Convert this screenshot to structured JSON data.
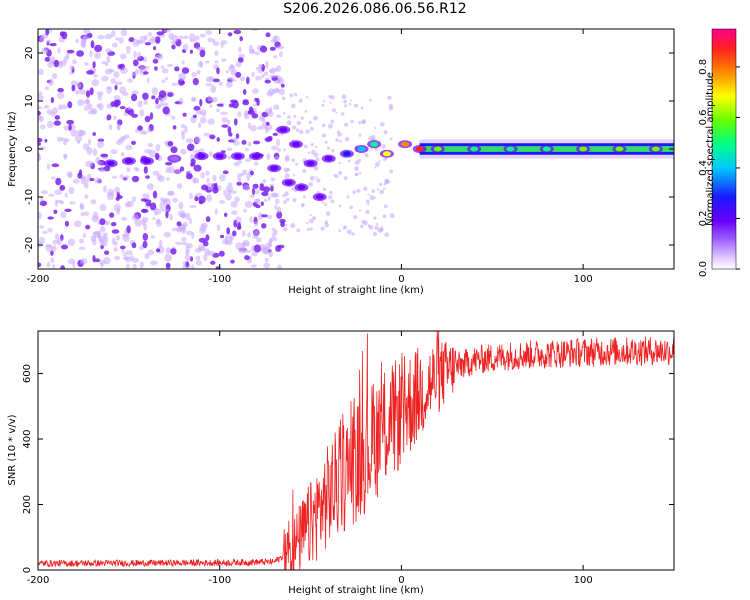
{
  "title": "S206.2026.086.06.56.R12",
  "chart_data": [
    {
      "type": "heatmap",
      "name": "spectrogram",
      "xlabel": "Height of straight line (km)",
      "ylabel": "Frequency (Hz)",
      "xlim": [
        -200,
        150
      ],
      "ylim": [
        -25,
        25
      ],
      "xticks": [
        -200,
        -100,
        0,
        100
      ],
      "yticks": [
        -20,
        -10,
        0,
        10,
        20
      ],
      "colorbar": {
        "label": "Normalized spectral amplitude",
        "range": [
          0,
          0.95
        ],
        "ticks": [
          0.0,
          0.2,
          0.4,
          0.6,
          0.8
        ],
        "colors": [
          "#ffffff",
          "#e6d2ff",
          "#a064ff",
          "#6a00ff",
          "#1a1aff",
          "#00c8ff",
          "#00ff88",
          "#66ff00",
          "#ffff00",
          "#ff8800",
          "#ff2020",
          "#ff0090"
        ]
      },
      "ridge": [
        {
          "x": -160,
          "y": -3,
          "amp": 0.25
        },
        {
          "x": -150,
          "y": -2.5,
          "amp": 0.3
        },
        {
          "x": -140,
          "y": -2.5,
          "amp": 0.25
        },
        {
          "x": -125,
          "y": -2,
          "amp": 0.2
        },
        {
          "x": -110,
          "y": -1.5,
          "amp": 0.3
        },
        {
          "x": -100,
          "y": -1.5,
          "amp": 0.3
        },
        {
          "x": -90,
          "y": -1.5,
          "amp": 0.3
        },
        {
          "x": -80,
          "y": -1.5,
          "amp": 0.25
        },
        {
          "x": -70,
          "y": -4,
          "amp": 0.3
        },
        {
          "x": -62,
          "y": -7,
          "amp": 0.3
        },
        {
          "x": -55,
          "y": -8,
          "amp": 0.3
        },
        {
          "x": -45,
          "y": -10,
          "amp": 0.3
        },
        {
          "x": -65,
          "y": 4,
          "amp": 0.3
        },
        {
          "x": -58,
          "y": 1,
          "amp": 0.25
        },
        {
          "x": -50,
          "y": -3,
          "amp": 0.3
        },
        {
          "x": -40,
          "y": -2,
          "amp": 0.3
        },
        {
          "x": -30,
          "y": -1,
          "amp": 0.35
        },
        {
          "x": -22,
          "y": 0,
          "amp": 0.45
        },
        {
          "x": -15,
          "y": 1,
          "amp": 0.55
        },
        {
          "x": -8,
          "y": -1,
          "amp": 0.65
        },
        {
          "x": 2,
          "y": 1,
          "amp": 0.75
        },
        {
          "x": 10,
          "y": 0,
          "amp": 0.85
        },
        {
          "x": 20,
          "y": 0,
          "amp": 0.6
        },
        {
          "x": 40,
          "y": 0,
          "amp": 0.55
        },
        {
          "x": 60,
          "y": 0,
          "amp": 0.55
        },
        {
          "x": 80,
          "y": 0,
          "amp": 0.55
        },
        {
          "x": 100,
          "y": 0,
          "amp": 0.6
        },
        {
          "x": 120,
          "y": 0,
          "amp": 0.6
        },
        {
          "x": 140,
          "y": 0,
          "amp": 0.6
        }
      ]
    },
    {
      "type": "line",
      "name": "snr",
      "xlabel": "Height of straight line (km)",
      "ylabel": "SNR (10 * v/v)",
      "xlim": [
        -200,
        150
      ],
      "ylim": [
        0,
        730
      ],
      "xticks": [
        -200,
        -100,
        0,
        100
      ],
      "yticks": [
        0,
        200,
        400,
        600
      ],
      "color": "#ee2222",
      "envelope": {
        "x": [
          -200,
          -100,
          -70,
          -60,
          -50,
          -40,
          -30,
          -20,
          -10,
          0,
          10,
          20,
          30,
          40,
          60,
          80,
          100,
          120,
          150
        ],
        "y": [
          20,
          22,
          25,
          60,
          140,
          230,
          300,
          360,
          430,
          480,
          540,
          590,
          620,
          640,
          655,
          660,
          665,
          668,
          670
        ]
      }
    }
  ]
}
